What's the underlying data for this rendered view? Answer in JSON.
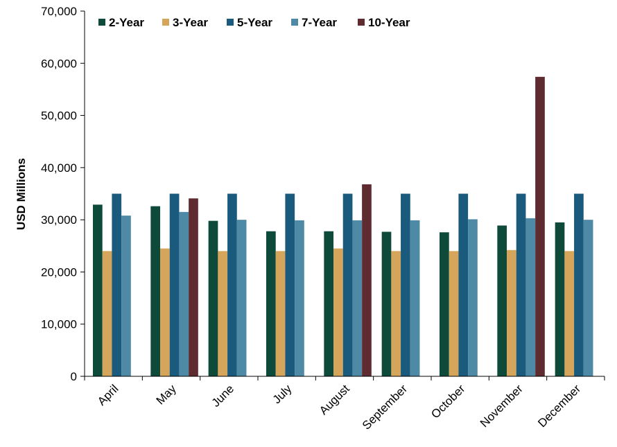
{
  "chart_data": {
    "type": "bar",
    "title": "",
    "xlabel": "",
    "ylabel": "USD Millions",
    "ylim": [
      0,
      70000
    ],
    "yticks": [
      0,
      10000,
      20000,
      30000,
      40000,
      50000,
      60000,
      70000
    ],
    "ytick_labels": [
      "0",
      "10,000",
      "20,000",
      "30,000",
      "40,000",
      "50,000",
      "60,000",
      "70,000"
    ],
    "grid": false,
    "legend_position": "top-left",
    "categories": [
      "April",
      "May",
      "June",
      "July",
      "August",
      "September",
      "October",
      "November",
      "December"
    ],
    "series": [
      {
        "name": "2-Year",
        "color": "#0d4a3a",
        "values": [
          32900,
          32600,
          29800,
          27800,
          27800,
          27700,
          27600,
          28900,
          29500
        ]
      },
      {
        "name": "3-Year",
        "color": "#d4a55a",
        "values": [
          24000,
          24500,
          24000,
          24000,
          24500,
          24000,
          24000,
          24200,
          24000
        ]
      },
      {
        "name": "5-Year",
        "color": "#1a5a7c",
        "values": [
          35000,
          35000,
          35000,
          35000,
          35000,
          35000,
          35000,
          35000,
          35000
        ]
      },
      {
        "name": "7-Year",
        "color": "#4e8aa6",
        "values": [
          30800,
          31500,
          30000,
          29900,
          29900,
          29900,
          30100,
          30300,
          30000
        ]
      },
      {
        "name": "10-Year",
        "color": "#5e2c30",
        "values": [
          null,
          34100,
          null,
          null,
          36800,
          null,
          null,
          57400,
          null
        ]
      }
    ]
  }
}
